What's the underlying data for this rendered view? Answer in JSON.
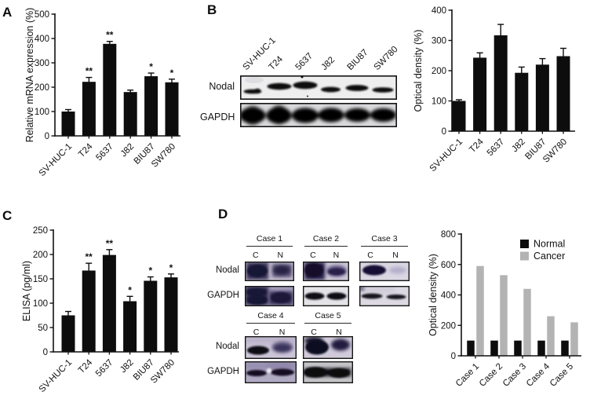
{
  "panels": {
    "a": "A",
    "b": "B",
    "c": "C",
    "d": "D"
  },
  "cell_lines": [
    "SV-HUC-1",
    "T24",
    "5637",
    "J82",
    "BIU87",
    "SW780"
  ],
  "blot_b": {
    "antibody_labels": [
      "Nodal",
      "GAPDH"
    ],
    "lanes": [
      "SV-HUC-1",
      "T24",
      "5637",
      "J82",
      "BIU87",
      "SW780"
    ]
  },
  "blot_d": {
    "antibody_labels": [
      "Nodal",
      "GAPDH"
    ],
    "cases": [
      "Case 1",
      "Case 2",
      "Case 3",
      "Case 4",
      "Case 5"
    ],
    "lane_labels": [
      "C",
      "N"
    ]
  },
  "colors": {
    "bar_black": "#0d0d0d",
    "bar_gray": "#b3b3b3"
  },
  "chart_data": [
    {
      "id": "A",
      "type": "bar",
      "panel": "A",
      "ylabel": "Relative mRNA expression (%)",
      "ylim": [
        0,
        500
      ],
      "yticks": [
        0,
        100,
        200,
        300,
        400,
        500
      ],
      "categories": [
        "SV-HUC-1",
        "T24",
        "5637",
        "J82",
        "BIU87",
        "SW780"
      ],
      "values": [
        100,
        222,
        378,
        180,
        245,
        220
      ],
      "errors": [
        8,
        18,
        10,
        8,
        13,
        13
      ],
      "sig": [
        "",
        "**",
        "**",
        "",
        "*",
        "*"
      ],
      "bar_color": "#0d0d0d",
      "grid": false
    },
    {
      "id": "B",
      "type": "bar",
      "panel": "B",
      "ylabel": "Optical density (%)",
      "ylim": [
        0,
        400
      ],
      "yticks": [
        0,
        100,
        200,
        300,
        400
      ],
      "categories": [
        "SV-HUC-1",
        "T24",
        "5637",
        "J82",
        "BIU87",
        "SW780"
      ],
      "values": [
        100,
        243,
        317,
        193,
        220,
        248
      ],
      "errors": [
        4,
        16,
        36,
        19,
        20,
        26
      ],
      "sig": [
        "",
        "",
        "",
        "",
        "",
        ""
      ],
      "bar_color": "#0d0d0d",
      "grid": false
    },
    {
      "id": "C",
      "type": "bar",
      "panel": "C",
      "ylabel": "ELISA (pg/ml)",
      "ylim": [
        0,
        250
      ],
      "yticks": [
        0,
        50,
        100,
        150,
        200,
        250
      ],
      "categories": [
        "SV-HUC-1",
        "T24",
        "5637",
        "J82",
        "BIU87",
        "SW780"
      ],
      "values": [
        75,
        167,
        199,
        104,
        146,
        153
      ],
      "errors": [
        8,
        15,
        11,
        10,
        8,
        7
      ],
      "sig": [
        "",
        "**",
        "**",
        "*",
        "*",
        "*"
      ],
      "bar_color": "#0d0d0d",
      "grid": false
    },
    {
      "id": "D",
      "type": "bar",
      "panel": "D",
      "grouped": true,
      "ylabel": "Optical density (%)",
      "ylim": [
        0,
        800
      ],
      "yticks": [
        0,
        200,
        400,
        600,
        800
      ],
      "categories": [
        "Case 1",
        "Case 2",
        "Case 3",
        "Case 4",
        "Case 5"
      ],
      "series": [
        {
          "name": "Normal",
          "color": "#0d0d0d",
          "values": [
            100,
            100,
            100,
            100,
            100
          ]
        },
        {
          "name": "Cancer",
          "color": "#b3b3b3",
          "values": [
            590,
            530,
            440,
            260,
            220
          ]
        }
      ],
      "legend_position": "top-right",
      "grid": false
    }
  ]
}
